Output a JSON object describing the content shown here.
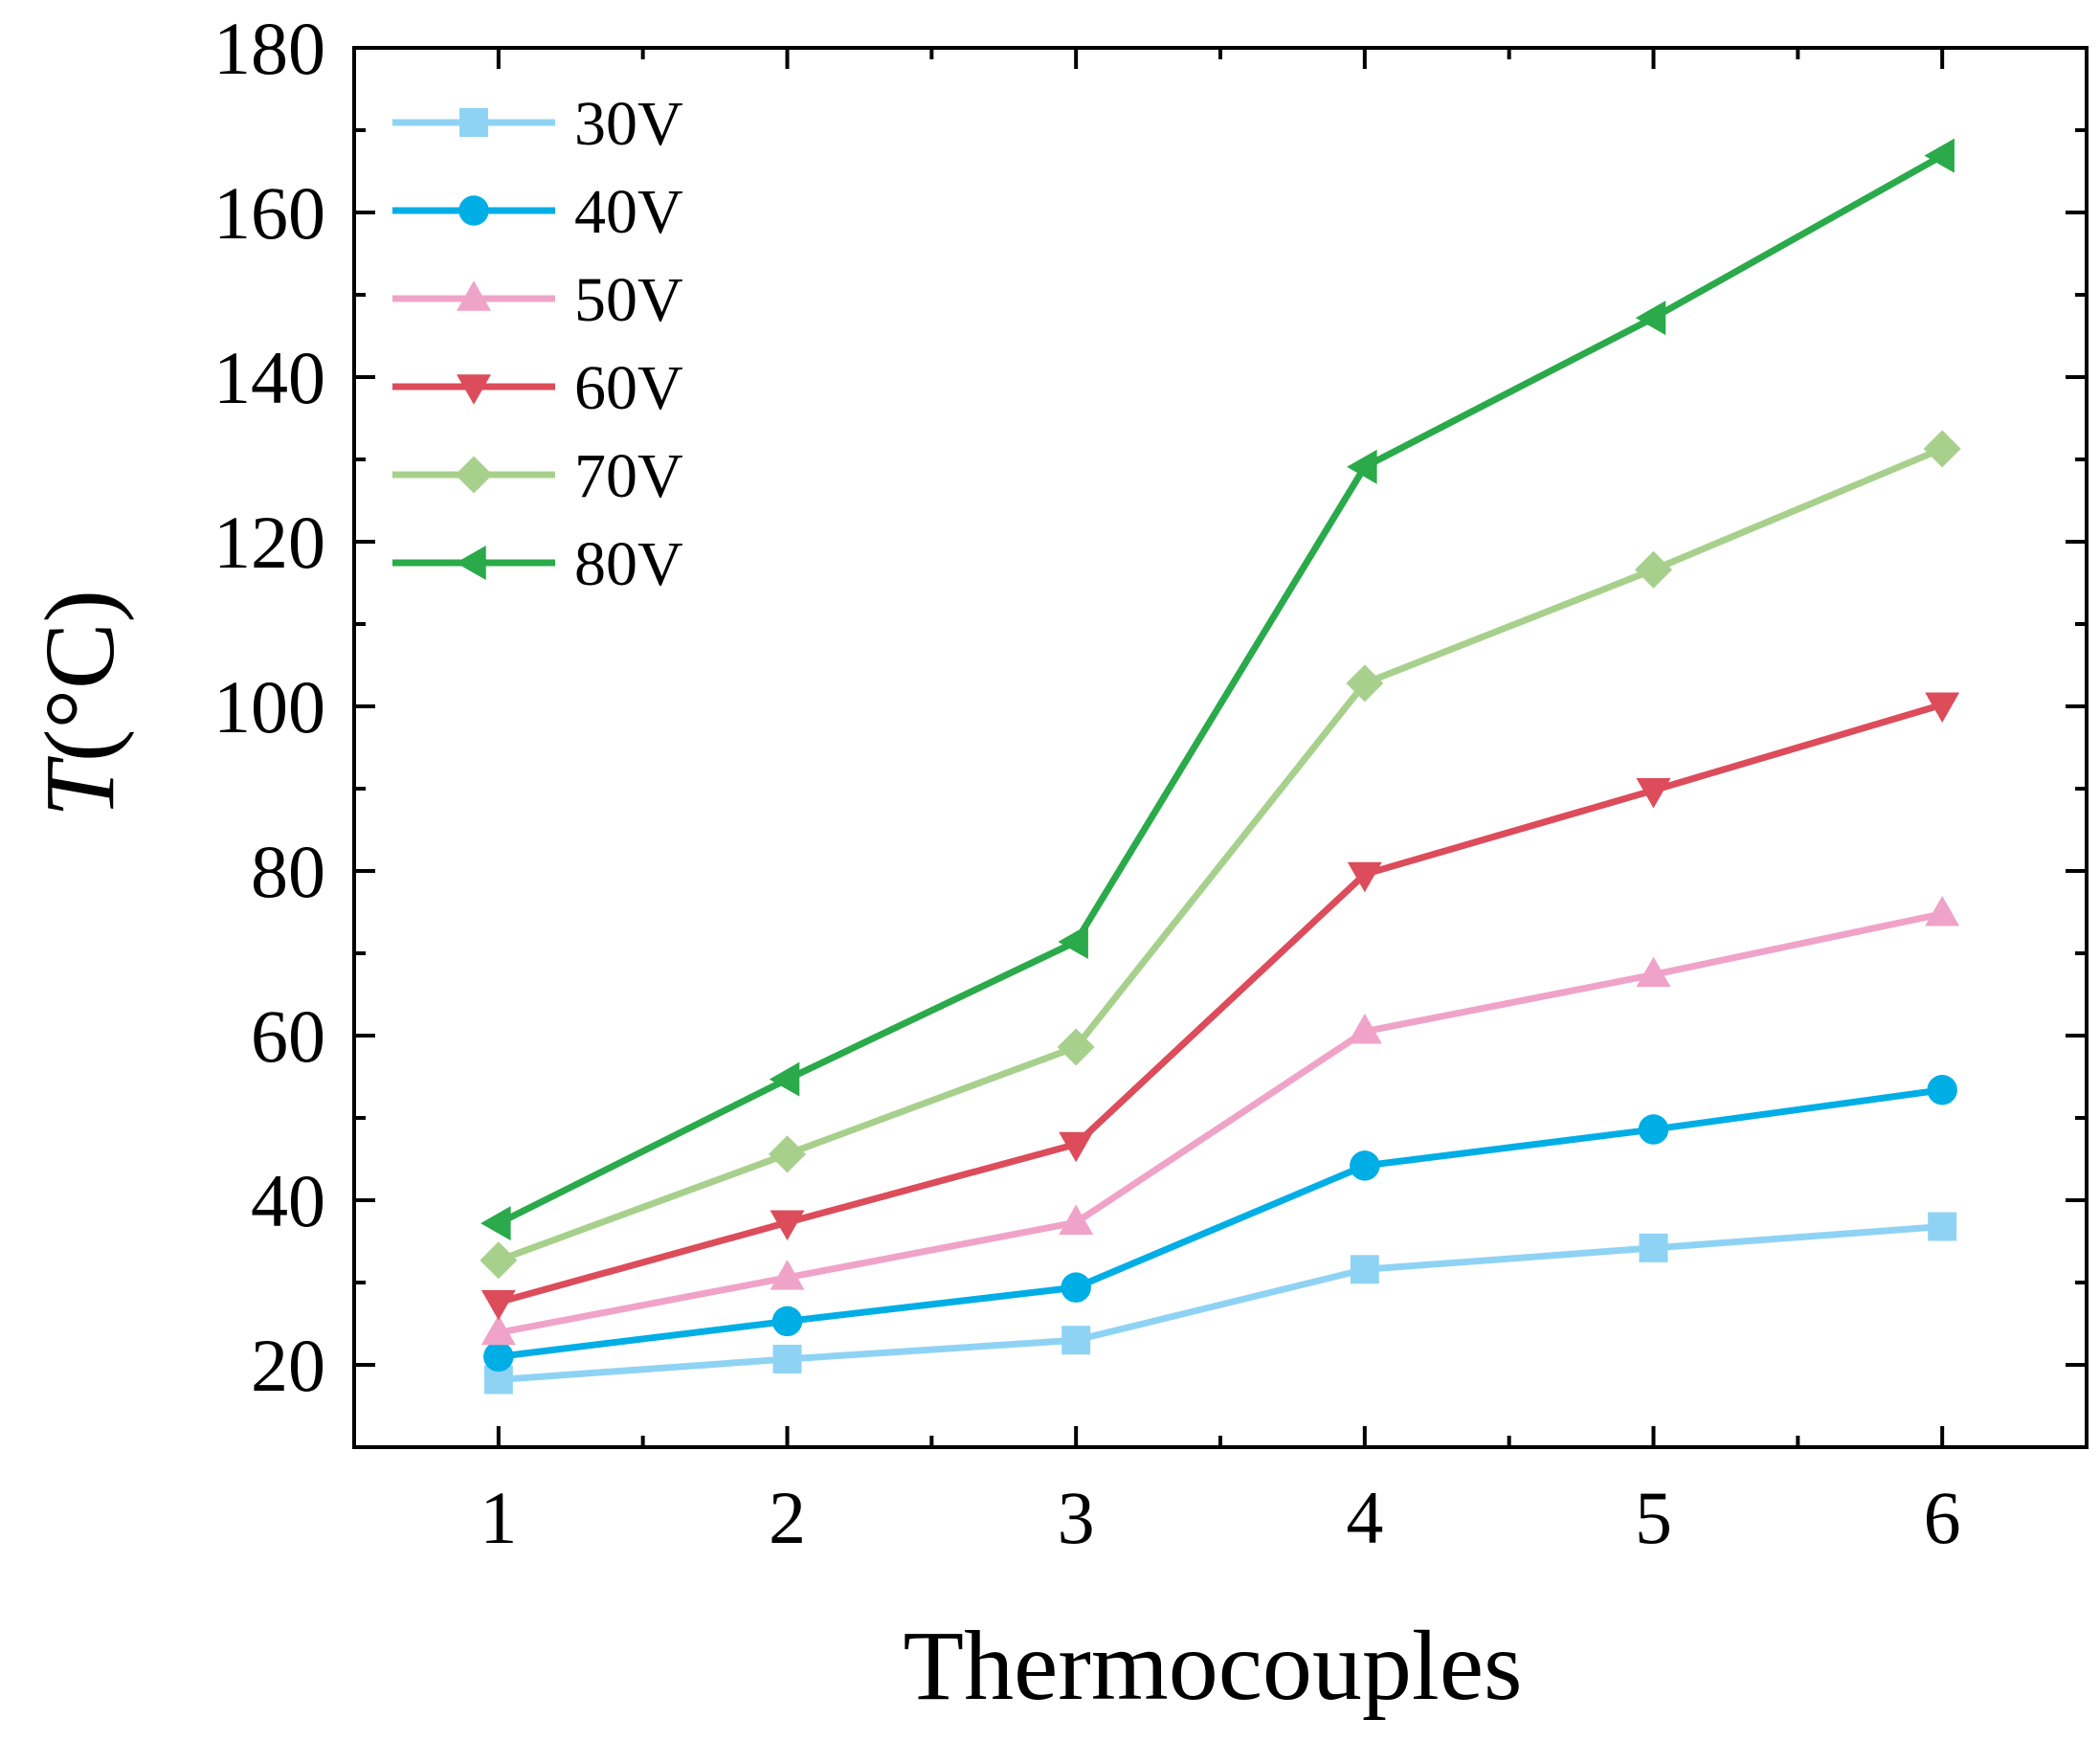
{
  "chart_data": {
    "type": "line",
    "title": "",
    "xlabel": "Thermocouples",
    "ylabel": {
      "italic": "T",
      "rest": "(°C)"
    },
    "x": [
      1,
      2,
      3,
      4,
      5,
      6
    ],
    "x_tick_labels": [
      "1",
      "2",
      "3",
      "4",
      "5",
      "6"
    ],
    "xlim": [
      0.5,
      6.5
    ],
    "ylim": [
      10,
      180
    ],
    "y_ticks": [
      20,
      40,
      60,
      80,
      100,
      120,
      140,
      160,
      180
    ],
    "y_tick_labels": [
      "20",
      "40",
      "60",
      "80",
      "100",
      "120",
      "140",
      "160",
      "180"
    ],
    "grid": false,
    "legend_position": "top-left",
    "series": [
      {
        "name": "30V",
        "marker": "square",
        "color": "#8fd3f4",
        "values": [
          18.2,
          20.7,
          23.0,
          31.6,
          34.2,
          36.8
        ]
      },
      {
        "name": "40V",
        "marker": "circle",
        "color": "#00aee6",
        "values": [
          21.0,
          25.3,
          29.4,
          44.2,
          48.6,
          53.4
        ]
      },
      {
        "name": "50V",
        "marker": "triangle-up",
        "color": "#f0a3c8",
        "values": [
          23.9,
          30.6,
          37.3,
          60.5,
          67.4,
          74.8
        ]
      },
      {
        "name": "60V",
        "marker": "triangle-down",
        "color": "#dc4c5a",
        "values": [
          27.6,
          37.3,
          46.8,
          79.6,
          89.8,
          100.2
        ]
      },
      {
        "name": "70V",
        "marker": "diamond",
        "color": "#a8d08d",
        "values": [
          32.7,
          45.6,
          58.6,
          102.8,
          116.6,
          131.3
        ]
      },
      {
        "name": "80V",
        "marker": "triangle-left",
        "color": "#2aaa4a",
        "values": [
          37.2,
          54.7,
          71.4,
          129.1,
          147.2,
          166.9
        ]
      }
    ]
  }
}
